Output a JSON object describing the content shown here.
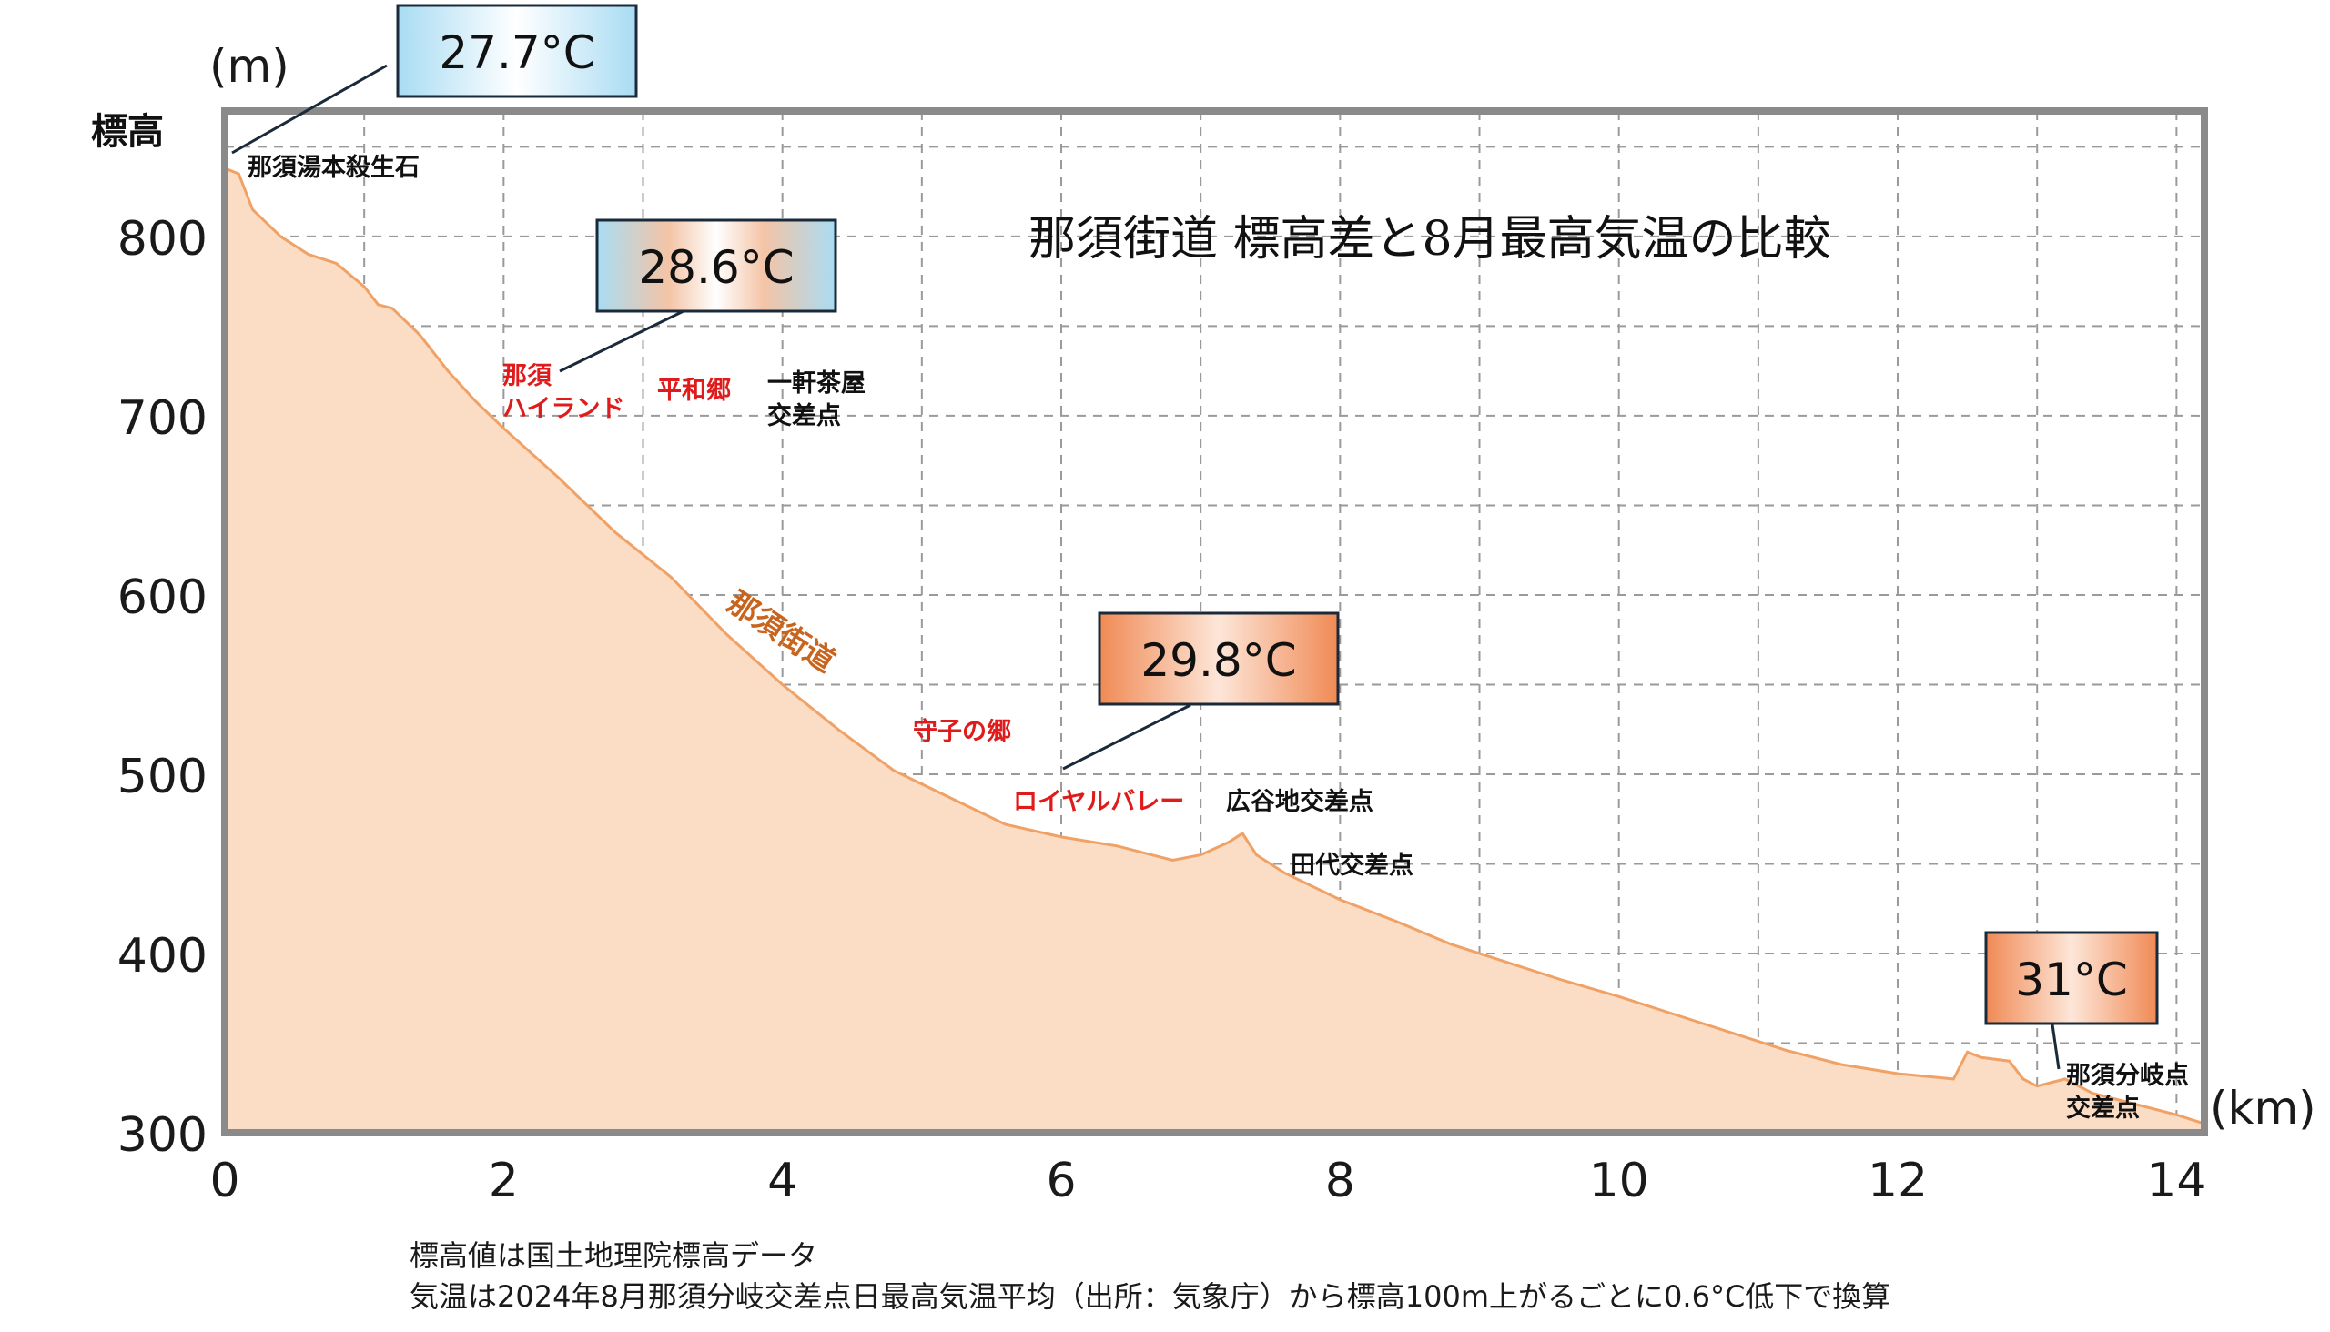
{
  "chart_data": {
    "type": "area",
    "title": "那須街道 標高差と8月最高気温の比較",
    "ylabel": "標高",
    "y_unit": "(m)",
    "x_unit": "(km)",
    "xlim": [
      0,
      14.2
    ],
    "ylim": [
      300,
      870
    ],
    "x_ticks": [
      0,
      2,
      4,
      6,
      8,
      10,
      12,
      14
    ],
    "y_ticks": [
      300,
      400,
      500,
      600,
      700,
      800
    ],
    "grid": true,
    "series": [
      {
        "x": [
          0,
          0.1,
          0.2,
          0.4,
          0.6,
          0.8,
          1.0,
          1.1,
          1.2,
          1.4,
          1.6,
          1.8,
          2.0,
          2.4,
          2.8,
          3.2,
          3.6,
          4.0,
          4.4,
          4.8,
          5.2,
          5.6,
          6.0,
          6.4,
          6.8,
          7.0,
          7.2,
          7.3,
          7.4,
          7.6,
          8.0,
          8.4,
          8.8,
          9.2,
          9.6,
          10.0,
          10.4,
          10.8,
          11.2,
          11.6,
          12.0,
          12.4,
          12.5,
          12.6,
          12.8,
          12.9,
          13.0,
          13.2,
          13.4,
          13.6,
          14.0,
          14.2
        ],
        "y": [
          838,
          835,
          815,
          800,
          790,
          785,
          772,
          762,
          760,
          745,
          725,
          708,
          693,
          665,
          635,
          610,
          578,
          550,
          525,
          502,
          487,
          472,
          465,
          460,
          452,
          455,
          462,
          467,
          455,
          445,
          430,
          418,
          405,
          395,
          385,
          376,
          366,
          356,
          346,
          338,
          333,
          330,
          345,
          342,
          340,
          330,
          326,
          330,
          322,
          318,
          310,
          305
        ]
      }
    ],
    "annotations": {
      "places": [
        {
          "text": "那須湯本殺生石",
          "color": "black"
        },
        {
          "text": "那須",
          "color": "red"
        },
        {
          "text": "ハイランド",
          "color": "red"
        },
        {
          "text": "平和郷",
          "color": "red"
        },
        {
          "text": "一軒茶屋",
          "color": "black"
        },
        {
          "text": "交差点",
          "color": "black"
        },
        {
          "text": "那須街道",
          "color": "orange"
        },
        {
          "text": "守子の郷",
          "color": "red"
        },
        {
          "text": "ロイヤルバレー",
          "color": "red"
        },
        {
          "text": "広谷地交差点",
          "color": "black"
        },
        {
          "text": "田代交差点",
          "color": "black"
        },
        {
          "text": "那須分岐点",
          "color": "black"
        },
        {
          "text": "交差点",
          "color": "black"
        }
      ],
      "temperatures": [
        "27.7°C",
        "28.6°C",
        "29.8°C",
        "31°C"
      ]
    },
    "colors": {
      "fill": "#fbdcc4",
      "line": "#f0a266",
      "grid": "#9a9a9a",
      "frame": "#8a8a8a",
      "label_red": "#e01b1b",
      "label_orange": "#c8641e",
      "cool_box": "#bfe6f7",
      "warm_box": "#f08a55"
    }
  },
  "notes": {
    "line1": "標高値は国土地理院標高データ",
    "line2": "気温は2024年8月那須分岐交差点日最高気温平均（出所：気象庁）から標高100m上がるごとに0.6°C低下で換算"
  }
}
